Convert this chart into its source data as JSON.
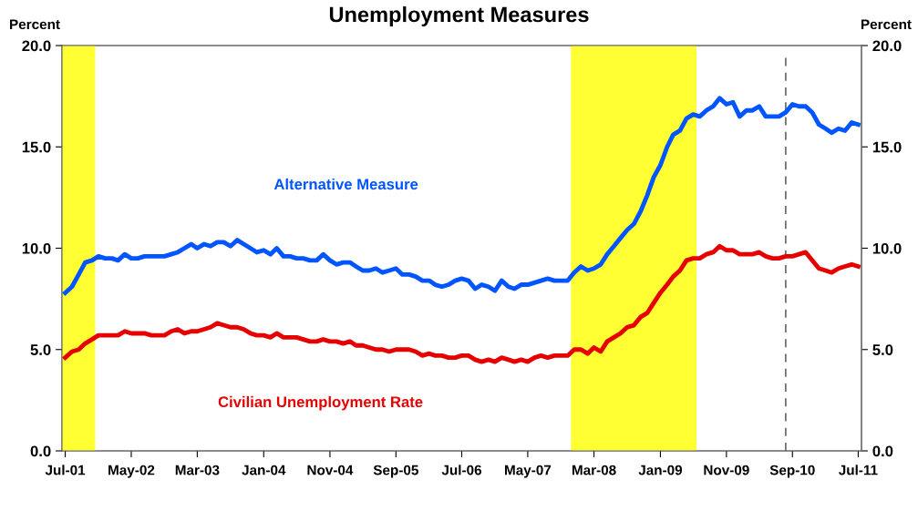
{
  "chart_data": {
    "type": "line",
    "title": "Unemployment Measures",
    "ylabel": "Percent",
    "y2label": "Percent",
    "x": [
      "2001-07",
      "2001-08",
      "2001-09",
      "2001-10",
      "2001-11",
      "2001-12",
      "2002-01",
      "2002-02",
      "2002-03",
      "2002-04",
      "2002-05",
      "2002-06",
      "2002-07",
      "2002-08",
      "2002-09",
      "2002-10",
      "2002-11",
      "2002-12",
      "2003-01",
      "2003-02",
      "2003-03",
      "2003-04",
      "2003-05",
      "2003-06",
      "2003-07",
      "2003-08",
      "2003-09",
      "2003-10",
      "2003-11",
      "2003-12",
      "2004-01",
      "2004-02",
      "2004-03",
      "2004-04",
      "2004-05",
      "2004-06",
      "2004-07",
      "2004-08",
      "2004-09",
      "2004-10",
      "2004-11",
      "2004-12",
      "2005-01",
      "2005-02",
      "2005-03",
      "2005-04",
      "2005-05",
      "2005-06",
      "2005-07",
      "2005-08",
      "2005-09",
      "2005-10",
      "2005-11",
      "2005-12",
      "2006-01",
      "2006-02",
      "2006-03",
      "2006-04",
      "2006-05",
      "2006-06",
      "2006-07",
      "2006-08",
      "2006-09",
      "2006-10",
      "2006-11",
      "2006-12",
      "2007-01",
      "2007-02",
      "2007-03",
      "2007-04",
      "2007-05",
      "2007-06",
      "2007-07",
      "2007-08",
      "2007-09",
      "2007-10",
      "2007-11",
      "2007-12",
      "2008-01",
      "2008-02",
      "2008-03",
      "2008-04",
      "2008-05",
      "2008-06",
      "2008-07",
      "2008-08",
      "2008-09",
      "2008-10",
      "2008-11",
      "2008-12",
      "2009-01",
      "2009-02",
      "2009-03",
      "2009-04",
      "2009-05",
      "2009-06",
      "2009-07",
      "2009-08",
      "2009-09",
      "2009-10",
      "2009-11",
      "2009-12",
      "2010-01",
      "2010-02",
      "2010-03",
      "2010-04",
      "2010-05",
      "2010-06",
      "2010-07",
      "2010-08",
      "2010-09",
      "2010-10",
      "2010-11",
      "2010-12",
      "2011-01",
      "2011-02",
      "2011-03",
      "2011-04",
      "2011-05",
      "2011-06",
      "2011-07"
    ],
    "series": [
      {
        "name": "Alternative Measure",
        "color": "#0055ff",
        "values": [
          7.8,
          8.1,
          8.7,
          9.3,
          9.4,
          9.6,
          9.5,
          9.5,
          9.4,
          9.7,
          9.5,
          9.5,
          9.6,
          9.6,
          9.6,
          9.6,
          9.7,
          9.8,
          10.0,
          10.2,
          10.0,
          10.2,
          10.1,
          10.3,
          10.3,
          10.1,
          10.4,
          10.2,
          10.0,
          9.8,
          9.9,
          9.7,
          10.0,
          9.6,
          9.6,
          9.5,
          9.5,
          9.4,
          9.4,
          9.7,
          9.4,
          9.2,
          9.3,
          9.3,
          9.1,
          8.9,
          8.9,
          9.0,
          8.8,
          8.9,
          9.0,
          8.7,
          8.7,
          8.6,
          8.4,
          8.4,
          8.2,
          8.1,
          8.2,
          8.4,
          8.5,
          8.4,
          8.0,
          8.2,
          8.1,
          7.9,
          8.4,
          8.1,
          8.0,
          8.2,
          8.2,
          8.3,
          8.4,
          8.5,
          8.4,
          8.4,
          8.4,
          8.8,
          9.1,
          8.9,
          9.0,
          9.2,
          9.7,
          10.1,
          10.5,
          10.9,
          11.2,
          11.8,
          12.6,
          13.5,
          14.1,
          15.0,
          15.6,
          15.8,
          16.4,
          16.6,
          16.5,
          16.8,
          17.0,
          17.4,
          17.1,
          17.2,
          16.5,
          16.8,
          16.8,
          17.0,
          16.5,
          16.5,
          16.5,
          16.7,
          17.1,
          17.0,
          17.0,
          16.7,
          16.1,
          15.9,
          15.7,
          15.9,
          15.8,
          16.2,
          16.1
        ]
      },
      {
        "name": "Civilian Unemployment Rate",
        "color": "#e60000",
        "values": [
          4.6,
          4.9,
          5.0,
          5.3,
          5.5,
          5.7,
          5.7,
          5.7,
          5.7,
          5.9,
          5.8,
          5.8,
          5.8,
          5.7,
          5.7,
          5.7,
          5.9,
          6.0,
          5.8,
          5.9,
          5.9,
          6.0,
          6.1,
          6.3,
          6.2,
          6.1,
          6.1,
          6.0,
          5.8,
          5.7,
          5.7,
          5.6,
          5.8,
          5.6,
          5.6,
          5.6,
          5.5,
          5.4,
          5.4,
          5.5,
          5.4,
          5.4,
          5.3,
          5.4,
          5.2,
          5.2,
          5.1,
          5.0,
          5.0,
          4.9,
          5.0,
          5.0,
          5.0,
          4.9,
          4.7,
          4.8,
          4.7,
          4.7,
          4.6,
          4.6,
          4.7,
          4.7,
          4.5,
          4.4,
          4.5,
          4.4,
          4.6,
          4.5,
          4.4,
          4.5,
          4.4,
          4.6,
          4.7,
          4.6,
          4.7,
          4.7,
          4.7,
          5.0,
          5.0,
          4.8,
          5.1,
          4.9,
          5.4,
          5.6,
          5.8,
          6.1,
          6.2,
          6.6,
          6.8,
          7.3,
          7.8,
          8.2,
          8.6,
          8.9,
          9.4,
          9.5,
          9.5,
          9.7,
          9.8,
          10.1,
          9.9,
          9.9,
          9.7,
          9.7,
          9.7,
          9.8,
          9.6,
          9.5,
          9.5,
          9.6,
          9.6,
          9.7,
          9.8,
          9.4,
          9.0,
          8.9,
          8.8,
          9.0,
          9.1,
          9.2,
          9.1
        ]
      }
    ],
    "xlim": [
      "2001-06-16",
      "2011-07-16"
    ],
    "xticks": [
      {
        "value": "2001-07",
        "label": "Jul-01"
      },
      {
        "value": "2002-05",
        "label": "May-02"
      },
      {
        "value": "2003-03",
        "label": "Mar-03"
      },
      {
        "value": "2004-01",
        "label": "Jan-04"
      },
      {
        "value": "2004-11",
        "label": "Nov-04"
      },
      {
        "value": "2005-09",
        "label": "Sep-05"
      },
      {
        "value": "2006-07",
        "label": "Jul-06"
      },
      {
        "value": "2007-05",
        "label": "May-07"
      },
      {
        "value": "2008-03",
        "label": "Mar-08"
      },
      {
        "value": "2009-01",
        "label": "Jan-09"
      },
      {
        "value": "2009-11",
        "label": "Nov-09"
      },
      {
        "value": "2010-09",
        "label": "Sep-10"
      },
      {
        "value": "2011-07",
        "label": "Jul-11"
      }
    ],
    "ylim": [
      0,
      20
    ],
    "yticks": [
      {
        "value": 0,
        "label": "0.0"
      },
      {
        "value": 5,
        "label": "5.0"
      },
      {
        "value": 10,
        "label": "10.0"
      },
      {
        "value": 15,
        "label": "15.0"
      },
      {
        "value": 20,
        "label": "20.0"
      }
    ],
    "y2lim": [
      0,
      20
    ],
    "y2ticks": [
      {
        "value": 0,
        "label": "0.0"
      },
      {
        "value": 5,
        "label": "5.0"
      },
      {
        "value": 10,
        "label": "10.0"
      },
      {
        "value": 15,
        "label": "15.0"
      },
      {
        "value": 20,
        "label": "20.0"
      }
    ],
    "bands": [
      {
        "axis": "x",
        "from": "2001-06-16",
        "to": "2001-11-16",
        "color": "#ffff33"
      },
      {
        "axis": "x",
        "from": "2007-11-16",
        "to": "2009-06-16",
        "color": "#ffff33"
      }
    ],
    "ref_lines": [
      {
        "axis": "x",
        "value": "2010-08",
        "color": "#707070",
        "line_style": "dashed"
      }
    ],
    "grid": false,
    "legend": false,
    "marker": "none",
    "line_style": "solid"
  }
}
